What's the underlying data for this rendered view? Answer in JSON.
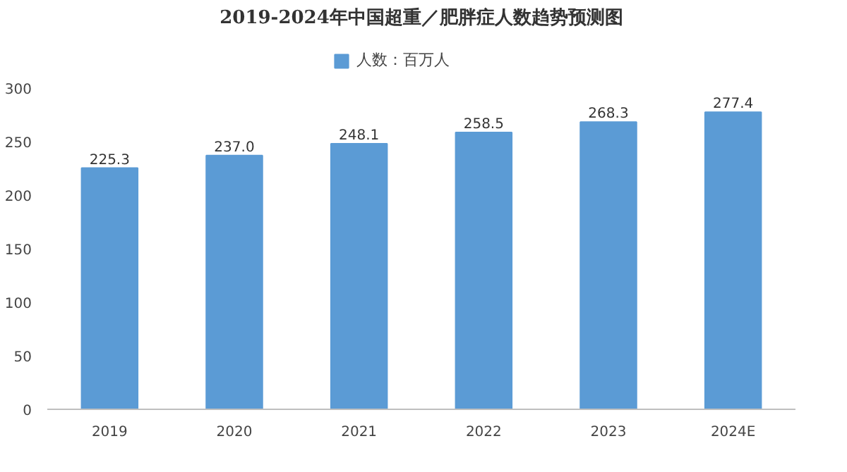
{
  "chart_data": {
    "type": "bar",
    "title": "2019-2024年中国超重／肥胖症人数趋势预测图",
    "categories": [
      "2019",
      "2020",
      "2021",
      "2022",
      "2023",
      "2024E"
    ],
    "series": [
      {
        "name": "人数：百万人",
        "color": "#5b9bd5",
        "values": [
          225.3,
          237.0,
          248.1,
          258.5,
          268.3,
          277.4
        ],
        "value_labels": [
          "225.3",
          "237.0",
          "248.1",
          "258.5",
          "268.3",
          "277.4"
        ]
      }
    ],
    "ylim": [
      0,
      300
    ],
    "yticks": [
      0,
      50,
      100,
      150,
      200,
      250,
      300
    ],
    "legend": "top",
    "grid": false
  }
}
